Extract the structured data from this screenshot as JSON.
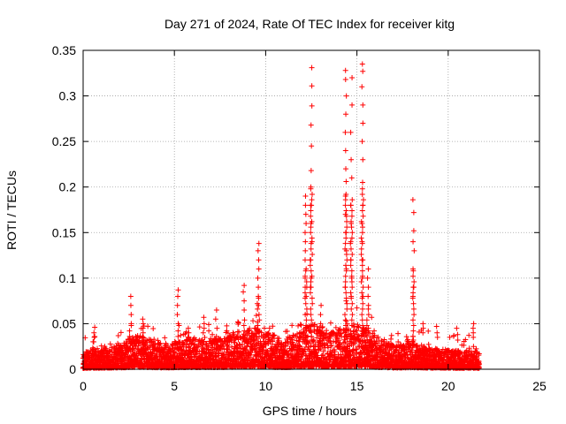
{
  "chart_data": {
    "type": "scatter",
    "title": "Day 271 of 2024, Rate Of TEC Index for receiver kitg",
    "xlabel": "GPS time / hours",
    "ylabel": "ROTI / TECUs",
    "xlim": [
      0,
      25
    ],
    "ylim": [
      0,
      0.35
    ],
    "x_ticks": [
      0,
      5,
      10,
      15,
      20,
      25
    ],
    "y_ticks": [
      0,
      0.05,
      0.1,
      0.15,
      0.2,
      0.25,
      0.3,
      0.35
    ],
    "x_tick_labels": [
      "0",
      "5",
      "10",
      "15",
      "20",
      "25"
    ],
    "y_tick_labels": [
      "0",
      "0.05",
      "0.1",
      "0.15",
      "0.2",
      "0.25",
      "0.3",
      "0.35"
    ],
    "grid": true,
    "marker": "+",
    "color": "#ff0000",
    "series": [
      {
        "name": "ROTI",
        "data_extent_hours": [
          0,
          21.7
        ],
        "baseline": [
          [
            0.0,
            0.01
          ],
          [
            0.5,
            0.014
          ],
          [
            1.0,
            0.013
          ],
          [
            1.5,
            0.014
          ],
          [
            2.0,
            0.016
          ],
          [
            2.5,
            0.02
          ],
          [
            3.0,
            0.022
          ],
          [
            3.5,
            0.02
          ],
          [
            4.0,
            0.018
          ],
          [
            4.5,
            0.017
          ],
          [
            5.0,
            0.018
          ],
          [
            5.5,
            0.019
          ],
          [
            6.0,
            0.02
          ],
          [
            6.5,
            0.021
          ],
          [
            7.0,
            0.02
          ],
          [
            7.5,
            0.02
          ],
          [
            8.0,
            0.022
          ],
          [
            8.5,
            0.024
          ],
          [
            9.0,
            0.026
          ],
          [
            9.5,
            0.028
          ],
          [
            10.0,
            0.025
          ],
          [
            10.5,
            0.022
          ],
          [
            11.0,
            0.02
          ],
          [
            11.5,
            0.022
          ],
          [
            12.0,
            0.026
          ],
          [
            12.5,
            0.03
          ],
          [
            13.0,
            0.028
          ],
          [
            13.5,
            0.024
          ],
          [
            14.0,
            0.026
          ],
          [
            14.5,
            0.03
          ],
          [
            15.0,
            0.03
          ],
          [
            15.5,
            0.028
          ],
          [
            16.0,
            0.022
          ],
          [
            16.5,
            0.018
          ],
          [
            17.0,
            0.016
          ],
          [
            17.5,
            0.016
          ],
          [
            18.0,
            0.017
          ],
          [
            18.5,
            0.016
          ],
          [
            19.0,
            0.014
          ],
          [
            19.5,
            0.013
          ],
          [
            20.0,
            0.013
          ],
          [
            20.5,
            0.012
          ],
          [
            21.0,
            0.012
          ],
          [
            21.7,
            0.012
          ]
        ],
        "spikes": [
          {
            "x": 0.6,
            "values": [
              0.046,
              0.04,
              0.035,
              0.03
            ]
          },
          {
            "x": 2.6,
            "values": [
              0.08,
              0.07,
              0.06,
              0.05
            ]
          },
          {
            "x": 3.3,
            "values": [
              0.055,
              0.05,
              0.045,
              0.04
            ]
          },
          {
            "x": 5.2,
            "values": [
              0.087,
              0.08,
              0.07,
              0.06,
              0.05
            ]
          },
          {
            "x": 5.8,
            "values": [
              0.045,
              0.04,
              0.035
            ]
          },
          {
            "x": 6.6,
            "values": [
              0.057,
              0.05,
              0.045,
              0.04
            ]
          },
          {
            "x": 7.3,
            "values": [
              0.065,
              0.055,
              0.045
            ]
          },
          {
            "x": 8.8,
            "values": [
              0.092,
              0.085,
              0.075,
              0.065
            ]
          },
          {
            "x": 9.6,
            "values": [
              0.138,
              0.13,
              0.12,
              0.11,
              0.1,
              0.09,
              0.08,
              0.07
            ]
          },
          {
            "x": 12.2,
            "values": [
              0.19,
              0.18,
              0.17,
              0.16,
              0.15,
              0.14,
              0.13,
              0.12,
              0.11,
              0.1,
              0.09,
              0.08
            ]
          },
          {
            "x": 12.5,
            "values": [
              0.331,
              0.311,
              0.289,
              0.268,
              0.245,
              0.218,
              0.2,
              0.18,
              0.16,
              0.14,
              0.12,
              0.1,
              0.09
            ]
          },
          {
            "x": 13.0,
            "values": [
              0.07,
              0.06,
              0.05
            ]
          },
          {
            "x": 14.4,
            "values": [
              0.328,
              0.318,
              0.3,
              0.28,
              0.26,
              0.24,
              0.22,
              0.206,
              0.19,
              0.17,
              0.15,
              0.13,
              0.11,
              0.09,
              0.075
            ]
          },
          {
            "x": 14.7,
            "values": [
              0.32,
              0.29,
              0.26,
              0.23,
              0.21,
              0.18,
              0.16,
              0.14,
              0.12,
              0.1,
              0.08
            ]
          },
          {
            "x": 15.3,
            "values": [
              0.335,
              0.327,
              0.31,
              0.29,
              0.27,
              0.25,
              0.23,
              0.205,
              0.18,
              0.16,
              0.14,
              0.12,
              0.1,
              0.08
            ]
          },
          {
            "x": 15.6,
            "values": [
              0.11,
              0.1,
              0.09,
              0.08,
              0.07
            ]
          },
          {
            "x": 18.1,
            "values": [
              0.186,
              0.172,
              0.152,
              0.14,
              0.13,
              0.11,
              0.09,
              0.08
            ]
          },
          {
            "x": 18.6,
            "values": [
              0.05,
              0.045,
              0.04
            ]
          },
          {
            "x": 19.4,
            "values": [
              0.047,
              0.04,
              0.035
            ]
          },
          {
            "x": 20.5,
            "values": [
              0.045,
              0.038,
              0.032
            ]
          },
          {
            "x": 21.4,
            "values": [
              0.05,
              0.045,
              0.04,
              0.035
            ]
          }
        ]
      }
    ]
  }
}
